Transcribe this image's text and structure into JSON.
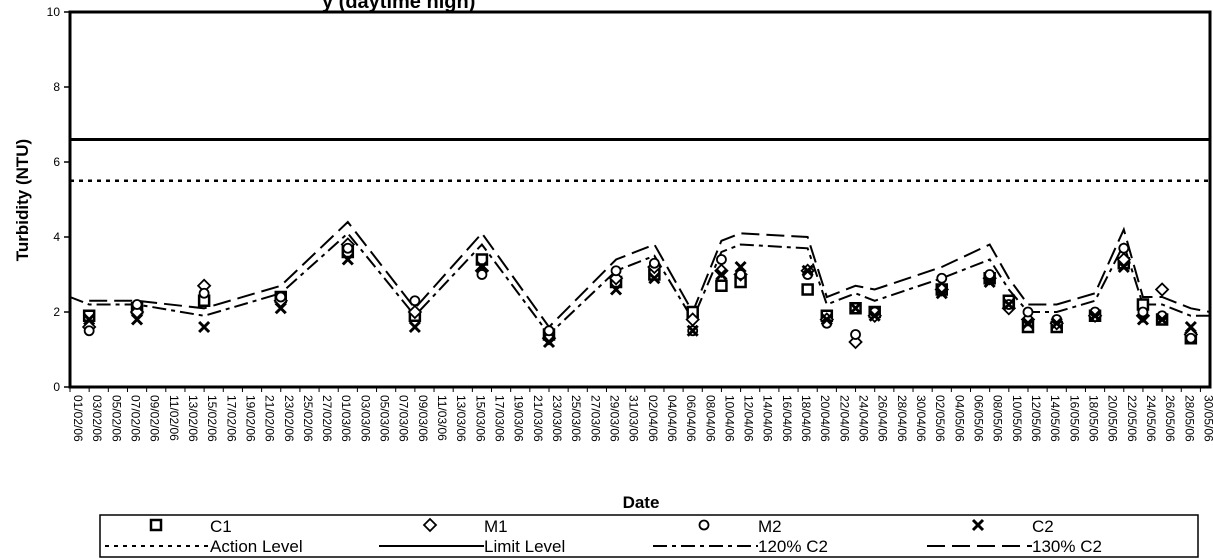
{
  "chart_data": {
    "type": "scatter",
    "title": "",
    "title_fragment": "y (daytime high)",
    "xlabel": "Date",
    "ylabel": "Turbidity (NTU)",
    "ylim": [
      0,
      10
    ],
    "yticks": [
      0,
      2,
      4,
      6,
      8,
      10
    ],
    "grid": false,
    "legend_position": "bottom",
    "x_tick_labels": [
      "01/02/06",
      "03/02/06",
      "05/02/06",
      "07/02/06",
      "09/02/06",
      "11/02/06",
      "13/02/06",
      "15/02/06",
      "17/02/06",
      "19/02/06",
      "21/02/06",
      "23/02/06",
      "25/02/06",
      "27/02/06",
      "01/03/06",
      "03/03/06",
      "05/03/06",
      "07/03/06",
      "09/03/06",
      "11/03/06",
      "13/03/06",
      "15/03/06",
      "17/03/06",
      "19/03/06",
      "21/03/06",
      "23/03/06",
      "25/03/06",
      "27/03/06",
      "29/03/06",
      "31/03/06",
      "02/04/06",
      "04/04/06",
      "06/04/06",
      "08/04/06",
      "10/04/06",
      "12/04/06",
      "14/04/06",
      "16/04/06",
      "18/04/06",
      "20/04/06",
      "22/04/06",
      "24/04/06",
      "26/04/06",
      "28/04/06",
      "30/04/06",
      "02/05/06",
      "04/05/06",
      "06/05/06",
      "08/05/06",
      "10/05/06",
      "12/05/06",
      "14/05/06",
      "16/05/06",
      "18/05/06",
      "20/05/06",
      "22/05/06",
      "24/05/06",
      "26/05/06",
      "28/05/06",
      "30/05/06"
    ],
    "x_range": [
      "2006-02-01",
      "2006-05-31"
    ],
    "series": [
      {
        "name": "C1",
        "marker": "square",
        "x": [
          "2006-02-03",
          "2006-02-08",
          "2006-02-15",
          "2006-02-23",
          "2006-03-02",
          "2006-03-09",
          "2006-03-16",
          "2006-03-23",
          "2006-03-30",
          "2006-04-03",
          "2006-04-07",
          "2006-04-10",
          "2006-04-12",
          "2006-04-19",
          "2006-04-21",
          "2006-04-24",
          "2006-04-26",
          "2006-05-03",
          "2006-05-08",
          "2006-05-10",
          "2006-05-12",
          "2006-05-15",
          "2006-05-19",
          "2006-05-22",
          "2006-05-24",
          "2006-05-26",
          "2006-05-29"
        ],
        "values": [
          1.9,
          2.1,
          2.3,
          2.4,
          3.6,
          1.9,
          3.4,
          1.4,
          2.8,
          3.0,
          2.0,
          2.7,
          2.8,
          2.6,
          1.9,
          2.1,
          2.0,
          2.6,
          2.9,
          2.3,
          1.6,
          1.6,
          1.9,
          3.3,
          2.2,
          1.8,
          1.3
        ]
      },
      {
        "name": "M1",
        "marker": "diamond",
        "x": [
          "2006-02-03",
          "2006-02-08",
          "2006-02-15",
          "2006-02-23",
          "2006-03-02",
          "2006-03-09",
          "2006-03-16",
          "2006-03-23",
          "2006-03-30",
          "2006-04-03",
          "2006-04-07",
          "2006-04-10",
          "2006-04-12",
          "2006-04-19",
          "2006-04-21",
          "2006-04-24",
          "2006-04-26",
          "2006-05-03",
          "2006-05-08",
          "2006-05-10",
          "2006-05-12",
          "2006-05-15",
          "2006-05-19",
          "2006-05-22",
          "2006-05-24",
          "2006-05-26",
          "2006-05-29"
        ],
        "values": [
          1.6,
          2.0,
          2.7,
          2.3,
          3.8,
          2.0,
          3.1,
          1.3,
          2.9,
          3.2,
          1.8,
          3.1,
          3.0,
          3.1,
          1.8,
          1.2,
          1.9,
          2.6,
          2.9,
          2.1,
          1.8,
          1.7,
          1.9,
          3.4,
          1.9,
          2.6,
          1.4
        ]
      },
      {
        "name": "M2",
        "marker": "circle",
        "x": [
          "2006-02-03",
          "2006-02-08",
          "2006-02-15",
          "2006-02-23",
          "2006-03-02",
          "2006-03-09",
          "2006-03-16",
          "2006-03-23",
          "2006-03-30",
          "2006-04-03",
          "2006-04-07",
          "2006-04-10",
          "2006-04-12",
          "2006-04-19",
          "2006-04-21",
          "2006-04-24",
          "2006-04-26",
          "2006-05-03",
          "2006-05-08",
          "2006-05-10",
          "2006-05-12",
          "2006-05-15",
          "2006-05-19",
          "2006-05-22",
          "2006-05-24",
          "2006-05-26",
          "2006-05-29"
        ],
        "values": [
          1.5,
          2.2,
          2.5,
          2.4,
          3.7,
          2.3,
          3.0,
          1.5,
          3.1,
          3.3,
          1.5,
          3.4,
          3.0,
          3.0,
          1.7,
          1.4,
          2.0,
          2.9,
          3.0,
          2.2,
          2.0,
          1.8,
          2.0,
          3.7,
          2.0,
          1.9,
          1.3
        ]
      },
      {
        "name": "C2",
        "marker": "x",
        "x": [
          "2006-02-03",
          "2006-02-08",
          "2006-02-15",
          "2006-02-23",
          "2006-03-02",
          "2006-03-09",
          "2006-03-16",
          "2006-03-23",
          "2006-03-30",
          "2006-04-03",
          "2006-04-07",
          "2006-04-10",
          "2006-04-12",
          "2006-04-19",
          "2006-04-21",
          "2006-04-24",
          "2006-04-26",
          "2006-05-03",
          "2006-05-08",
          "2006-05-10",
          "2006-05-12",
          "2006-05-15",
          "2006-05-19",
          "2006-05-22",
          "2006-05-24",
          "2006-05-26",
          "2006-05-29"
        ],
        "values": [
          1.8,
          1.8,
          1.6,
          2.1,
          3.4,
          1.6,
          3.2,
          1.2,
          2.6,
          2.9,
          1.5,
          3.0,
          3.2,
          3.1,
          1.8,
          2.1,
          1.9,
          2.5,
          2.8,
          2.2,
          1.7,
          1.7,
          1.9,
          3.2,
          1.8,
          1.8,
          1.6
        ]
      },
      {
        "name": "Action Level",
        "line": "dotted",
        "x": [
          "2006-02-01",
          "2006-05-31"
        ],
        "values": [
          5.5,
          5.5
        ]
      },
      {
        "name": "Limit Level",
        "line": "solid",
        "x": [
          "2006-02-01",
          "2006-05-31"
        ],
        "values": [
          6.6,
          6.6
        ]
      },
      {
        "name": "120% C2",
        "line": "dash-dot",
        "x": [
          "2006-02-01",
          "2006-02-03",
          "2006-02-08",
          "2006-02-15",
          "2006-02-23",
          "2006-03-02",
          "2006-03-09",
          "2006-03-16",
          "2006-03-23",
          "2006-03-30",
          "2006-04-03",
          "2006-04-07",
          "2006-04-10",
          "2006-04-12",
          "2006-04-19",
          "2006-04-21",
          "2006-04-24",
          "2006-04-26",
          "2006-05-03",
          "2006-05-08",
          "2006-05-10",
          "2006-05-12",
          "2006-05-15",
          "2006-05-19",
          "2006-05-22",
          "2006-05-24",
          "2006-05-26",
          "2006-05-29",
          "2006-05-31"
        ],
        "values": [
          2.4,
          2.2,
          2.2,
          1.9,
          2.5,
          4.1,
          1.9,
          3.8,
          1.4,
          3.1,
          3.5,
          1.8,
          3.6,
          3.8,
          3.7,
          2.2,
          2.5,
          2.3,
          2.9,
          3.4,
          2.6,
          2.0,
          2.0,
          2.3,
          3.8,
          2.2,
          2.2,
          1.9,
          1.9
        ]
      },
      {
        "name": "130% C2",
        "line": "dashed",
        "x": [
          "2006-02-03",
          "2006-02-08",
          "2006-02-15",
          "2006-02-23",
          "2006-03-02",
          "2006-03-09",
          "2006-03-16",
          "2006-03-23",
          "2006-03-30",
          "2006-04-03",
          "2006-04-07",
          "2006-04-10",
          "2006-04-12",
          "2006-04-19",
          "2006-04-21",
          "2006-04-24",
          "2006-04-26",
          "2006-05-03",
          "2006-05-08",
          "2006-05-10",
          "2006-05-12",
          "2006-05-15",
          "2006-05-19",
          "2006-05-22",
          "2006-05-24",
          "2006-05-26",
          "2006-05-29",
          "2006-05-31"
        ],
        "values": [
          2.3,
          2.3,
          2.1,
          2.7,
          4.4,
          2.1,
          4.1,
          1.6,
          3.4,
          3.8,
          2.0,
          3.9,
          4.1,
          4.0,
          2.4,
          2.7,
          2.6,
          3.2,
          3.8,
          2.9,
          2.2,
          2.2,
          2.5,
          4.2,
          2.4,
          2.4,
          2.1,
          2.0
        ]
      }
    ],
    "legend": [
      {
        "label": "C1",
        "symbol": "square"
      },
      {
        "label": "M1",
        "symbol": "diamond"
      },
      {
        "label": "M2",
        "symbol": "circle"
      },
      {
        "label": "C2",
        "symbol": "x"
      },
      {
        "label": "Action Level",
        "symbol": "dotted-line"
      },
      {
        "label": "Limit Level",
        "symbol": "solid-line"
      },
      {
        "label": "120% C2",
        "symbol": "dash-dot-line"
      },
      {
        "label": "130% C2",
        "symbol": "dashed-line"
      }
    ]
  }
}
